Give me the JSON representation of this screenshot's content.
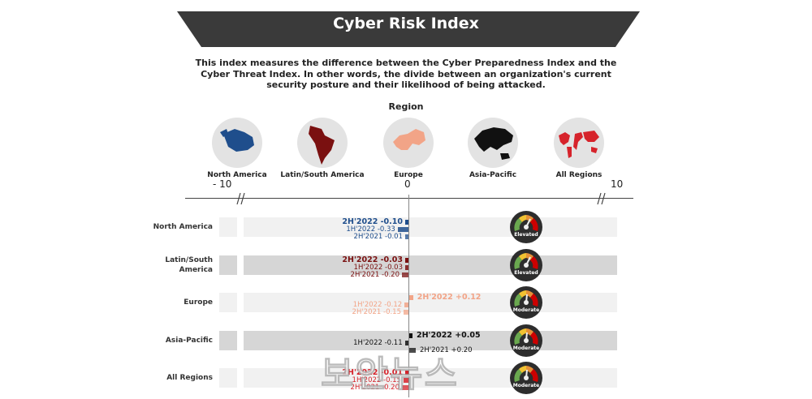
{
  "title": "Cyber Risk Index",
  "description": "This index measures the difference between the Cyber Preparedness Index and the Cyber Threat Index. In other words, the divide between an organization's current security posture and their likelihood of being attacked.",
  "region_heading": "Region",
  "regions": [
    {
      "label": "North America",
      "color": "#1f4e8c"
    },
    {
      "label": "Latin/South America",
      "color": "#7a1010"
    },
    {
      "label": "Europe",
      "color": "#f2a487"
    },
    {
      "label": "Asia-Pacific",
      "color": "#111111"
    },
    {
      "label": "All Regions",
      "color": "#d6232b"
    }
  ],
  "watermark": "보안뉴스",
  "chart_data": {
    "type": "bar",
    "orientation": "horizontal",
    "title": "Cyber Risk Index",
    "axis_ticks": [
      "- 10",
      "0",
      "10"
    ],
    "xlim": [
      -10,
      10
    ],
    "categories": [
      "North America",
      "Latin/South America",
      "Europe",
      "Asia-Pacific",
      "All Regions"
    ],
    "category_display": [
      [
        "North America"
      ],
      [
        "Latin/South",
        "America"
      ],
      [
        "Europe"
      ],
      [
        "Asia-Pacific"
      ],
      [
        "All Regions"
      ]
    ],
    "series": [
      {
        "name": "2H'2022",
        "values": [
          -0.1,
          -0.03,
          0.12,
          0.05,
          -0.01
        ]
      },
      {
        "name": "1H'2022",
        "values": [
          -0.33,
          -0.03,
          -0.12,
          -0.11,
          -0.15
        ]
      },
      {
        "name": "2H'2021",
        "values": [
          -0.01,
          -0.2,
          -0.15,
          0.2,
          -0.2
        ]
      }
    ],
    "value_labels": [
      [
        "2H'2022 -0.10",
        "1H'2022 -0.33",
        "2H'2021 -0.01"
      ],
      [
        "2H'2022 -0.03",
        "1H'2022 -0.03",
        "2H'2021 -0.20"
      ],
      [
        "2H'2022 +0.12",
        "1H'2022 -0.12",
        "2H'2021 -0.15"
      ],
      [
        "2H'2022 +0.05",
        "1H'2022 -0.11",
        "2H'2021 +0.20"
      ],
      [
        "2H'2022 -0.01",
        "1H'2022 -0.15",
        "2H'2021 -0.20"
      ]
    ],
    "row_colors": [
      "#1f4e8c",
      "#7a1010",
      "#f2a487",
      "#111111",
      "#d6232b"
    ],
    "risk_levels": [
      "Elevated",
      "Elevated",
      "Moderate",
      "Moderate",
      "Moderate"
    ]
  }
}
